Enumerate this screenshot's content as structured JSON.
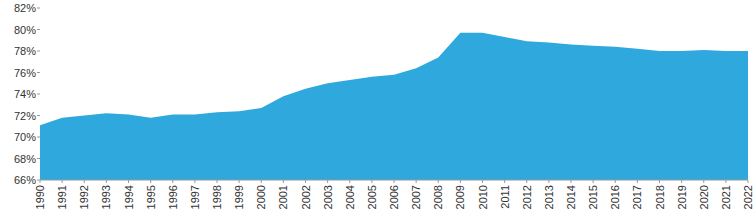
{
  "chart_data": {
    "type": "area",
    "color": "#2fa8de",
    "categories": [
      "1990",
      "1991",
      "1992",
      "1993",
      "1994",
      "1995",
      "1996",
      "1997",
      "1998",
      "1999",
      "2000",
      "2001",
      "2002",
      "2003",
      "2004",
      "2005",
      "2006",
      "2007",
      "2008",
      "2009",
      "2010",
      "2011",
      "2012",
      "2013",
      "2014",
      "2015",
      "2016",
      "2017",
      "2018",
      "2019",
      "2020",
      "2021",
      "2022"
    ],
    "values": [
      71.1,
      71.8,
      72.0,
      72.2,
      72.1,
      71.8,
      72.1,
      72.1,
      72.3,
      72.4,
      72.7,
      73.8,
      74.5,
      75.0,
      75.3,
      75.6,
      75.8,
      76.4,
      77.4,
      79.7,
      79.7,
      79.3,
      78.9,
      78.8,
      78.6,
      78.5,
      78.4,
      78.2,
      78.0,
      78.0,
      78.1,
      78.0,
      78.0
    ],
    "ylim": [
      66,
      82
    ],
    "yticks": [
      {
        "value": 66,
        "label": "66%"
      },
      {
        "value": 68,
        "label": "68%"
      },
      {
        "value": 70,
        "label": "70%"
      },
      {
        "value": 72,
        "label": "72%"
      },
      {
        "value": 74,
        "label": "74%"
      },
      {
        "value": 76,
        "label": "76%"
      },
      {
        "value": 78,
        "label": "78%"
      },
      {
        "value": 80,
        "label": "80%"
      },
      {
        "value": 82,
        "label": "82%"
      }
    ],
    "grid": false
  }
}
